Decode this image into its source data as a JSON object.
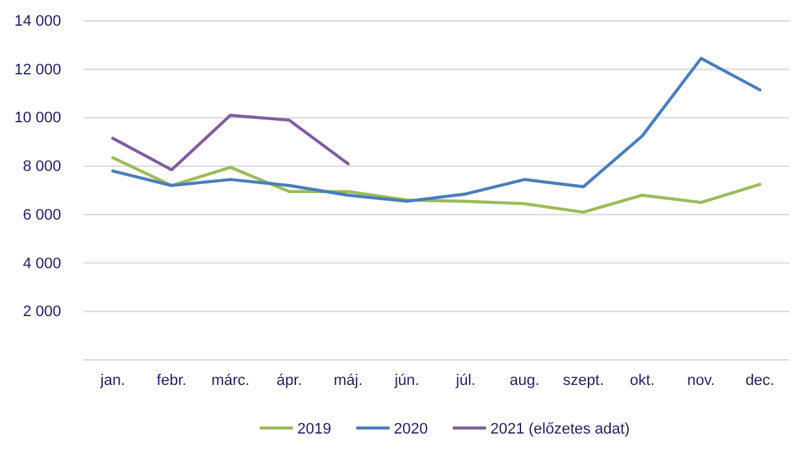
{
  "chart_data": {
    "type": "line",
    "categories": [
      "jan.",
      "febr.",
      "márc.",
      "ápr.",
      "máj.",
      "jún.",
      "júl.",
      "aug.",
      "szept.",
      "okt.",
      "nov.",
      "dec."
    ],
    "series": [
      {
        "name": "2019",
        "color": "#9bbb59",
        "values": [
          8350,
          7200,
          7950,
          6950,
          6950,
          6600,
          6550,
          6450,
          6100,
          6800,
          6500,
          7250
        ]
      },
      {
        "name": "2020",
        "color": "#4a7ebb",
        "values": [
          7800,
          7200,
          7450,
          7200,
          6800,
          6550,
          6850,
          7450,
          7150,
          9250,
          12450,
          11150
        ]
      },
      {
        "name": "2021 (előzetes adat)",
        "color": "#7f5ea0",
        "values": [
          9150,
          7850,
          10100,
          9900,
          8100,
          null,
          null,
          null,
          null,
          null,
          null,
          null
        ]
      }
    ],
    "ylim": [
      0,
      14000
    ],
    "yticks": [
      {
        "value": 0,
        "label": null
      },
      {
        "value": 2000,
        "label": "2 000"
      },
      {
        "value": 4000,
        "label": "4 000"
      },
      {
        "value": 6000,
        "label": "6 000"
      },
      {
        "value": 8000,
        "label": "8 000"
      },
      {
        "value": 10000,
        "label": "10 000"
      },
      {
        "value": 12000,
        "label": "12 000"
      },
      {
        "value": 14000,
        "label": "14 000"
      }
    ],
    "grid": "y",
    "legend": "bottom",
    "marker": "none",
    "line_style": "solid"
  }
}
